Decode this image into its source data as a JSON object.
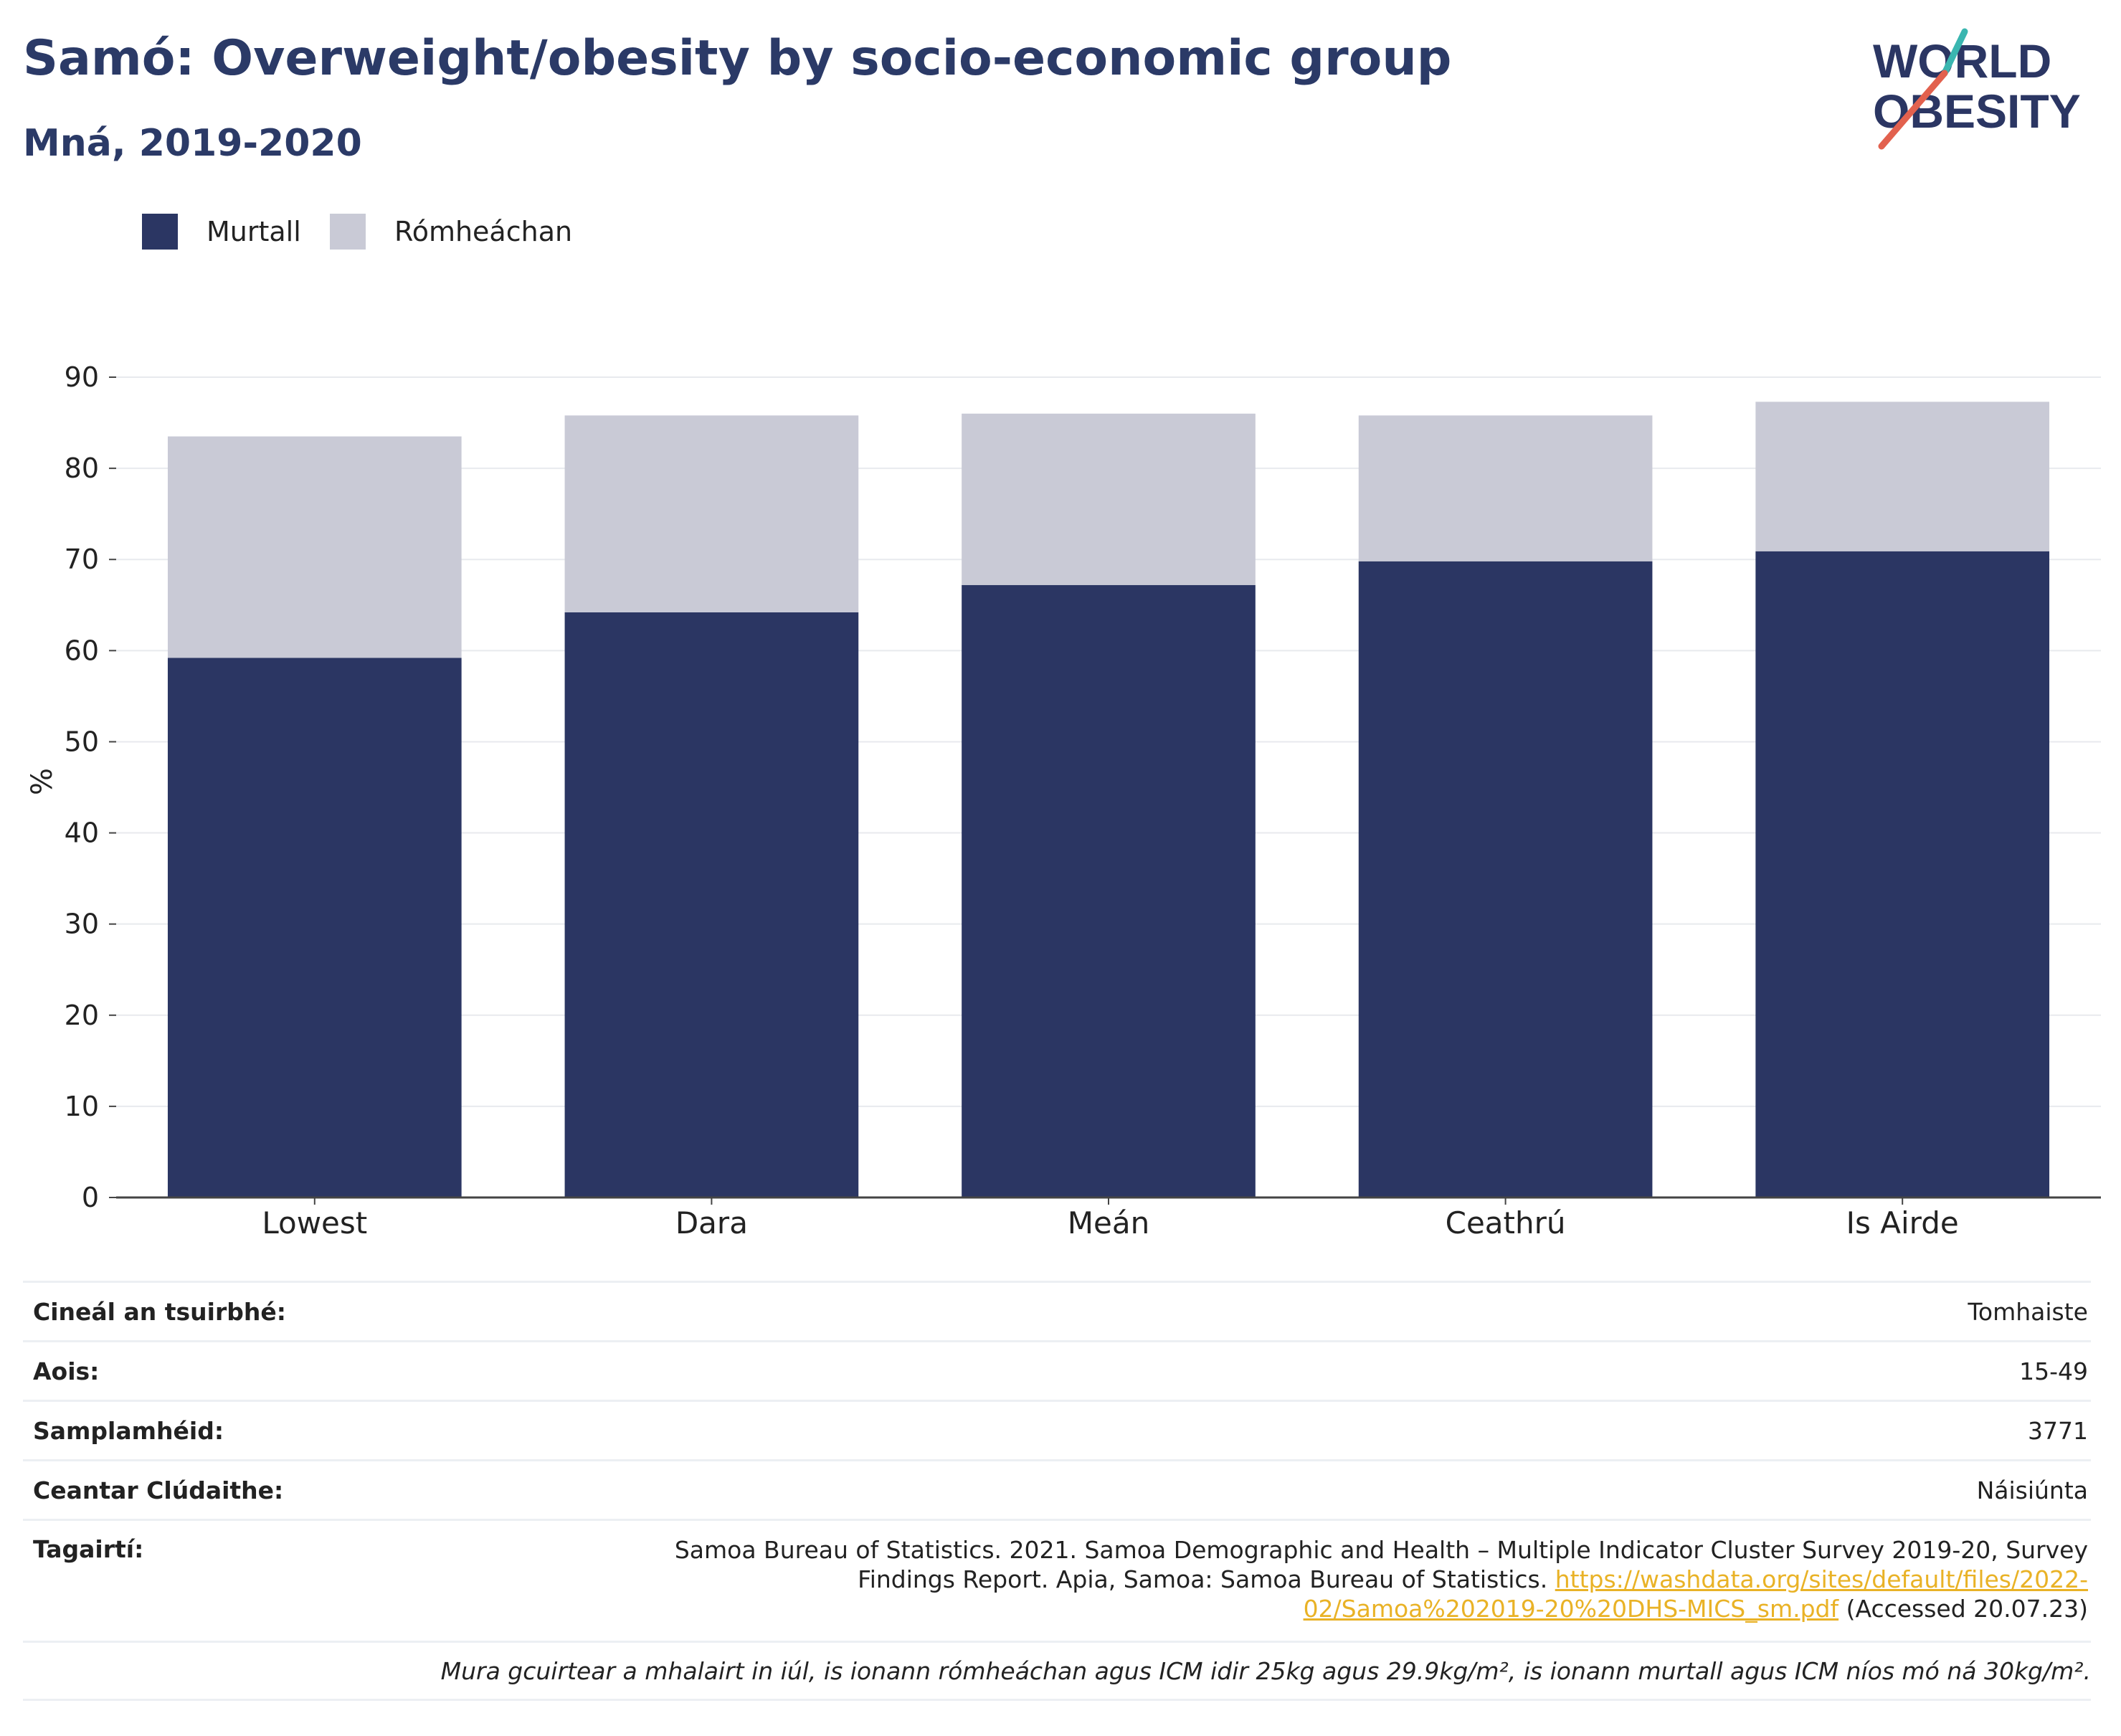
{
  "header": {
    "title": "Samó: Overweight/obesity by socio-economic group",
    "subtitle": "Mná, 2019-2020"
  },
  "logo": {
    "line1": "WORLD",
    "line2": "OBESITY"
  },
  "colors": {
    "obese": "#2b3663",
    "overweight": "#c9cad6",
    "title": "#2b3a67",
    "link": "#e9b226",
    "logo_red": "#e2614e",
    "logo_teal": "#3ab6b0"
  },
  "legend": [
    {
      "label": "Murtall",
      "color": "#2b3663"
    },
    {
      "label": "Rómheáchan",
      "color": "#c9cad6"
    }
  ],
  "chart_data": {
    "type": "bar",
    "stacked": true,
    "categories": [
      "Lowest",
      "Dara",
      "Meán",
      "Ceathrú",
      "Is Airde"
    ],
    "series": [
      {
        "name": "Murtall",
        "values": [
          59.2,
          64.2,
          67.2,
          69.8,
          70.9
        ]
      },
      {
        "name": "Rómheáchan",
        "values": [
          24.3,
          21.6,
          18.8,
          16.0,
          16.4
        ]
      }
    ],
    "ylabel": "%",
    "xlabel": "",
    "ylim": [
      0,
      90
    ],
    "yticks": [
      0,
      10,
      20,
      30,
      40,
      50,
      60,
      70,
      80,
      90
    ],
    "grid": true,
    "legend_position": "top-left"
  },
  "meta": {
    "survey_type": {
      "label": "Cineál an tsuirbhé:",
      "value": "Tomhaiste"
    },
    "age": {
      "label": "Aois:",
      "value": "15-49"
    },
    "sample": {
      "label": "Samplamhéid:",
      "value": "3771"
    },
    "coverage": {
      "label": "Ceantar Clúdaithe:",
      "value": "Náisiúnta"
    },
    "references": {
      "label": "Tagairtí:",
      "text_before": "Samoa Bureau of Statistics. 2021. Samoa Demographic and Health – Multiple Indicator Cluster Survey 2019-20, Survey Findings Report. Apia, Samoa: Samoa Bureau of Statistics. ",
      "link": "https://washdata.org/sites/default/files/2022-02/Samoa%202019-20%20DHS-MICS_sm.pdf",
      "text_after": " (Accessed 20.07.23)"
    },
    "note": "Mura gcuirtear a mhalairt in iúl, is ionann rómheáchan agus ICM idir 25kg agus 29.9kg/m², is ionann murtall agus ICM níos mó ná 30kg/m²."
  }
}
